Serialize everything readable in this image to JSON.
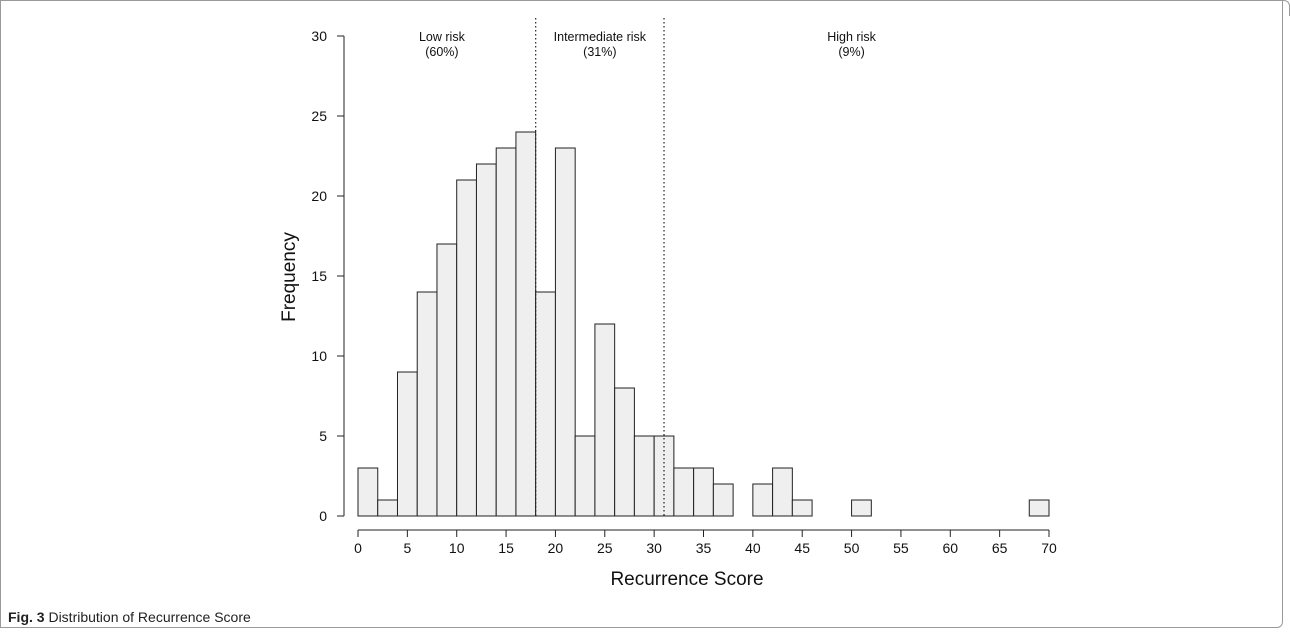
{
  "chart_data": {
    "type": "bar",
    "title": "",
    "xlabel": "Recurrence Score",
    "ylabel": "Frequency",
    "bin_width": 2,
    "bin_starts": [
      0,
      2,
      4,
      6,
      8,
      10,
      12,
      14,
      16,
      18,
      20,
      22,
      24,
      26,
      28,
      30,
      32,
      34,
      36,
      38,
      40,
      42,
      44,
      46,
      48,
      50,
      52,
      54,
      56,
      58,
      60,
      62,
      64,
      66,
      68
    ],
    "values": [
      3,
      1,
      9,
      14,
      17,
      21,
      22,
      23,
      24,
      14,
      23,
      5,
      12,
      8,
      5,
      5,
      3,
      3,
      2,
      0,
      2,
      3,
      1,
      0,
      0,
      1,
      0,
      0,
      0,
      0,
      0,
      0,
      0,
      0,
      1
    ],
    "xlim": [
      0,
      70
    ],
    "ylim": [
      0,
      30
    ],
    "x_ticks": [
      "0",
      "5",
      "10",
      "15",
      "20",
      "25",
      "30",
      "35",
      "40",
      "45",
      "50",
      "55",
      "60",
      "65",
      "70"
    ],
    "y_ticks": [
      "0",
      "5",
      "10",
      "15",
      "20",
      "25",
      "30"
    ],
    "cutoffs": [
      18,
      31
    ],
    "regions": [
      {
        "label": "Low risk",
        "pct": "(60%)",
        "x": 8.5
      },
      {
        "label": "Intermediate risk",
        "pct": "(31%)",
        "x": 24.5
      },
      {
        "label": "High risk",
        "pct": "(9%)",
        "x": 50
      }
    ],
    "bar_color": "#efefef",
    "grid": false,
    "legend": "none"
  },
  "caption": {
    "label": "Fig. 3",
    "text": "Distribution of Recurrence Score"
  }
}
